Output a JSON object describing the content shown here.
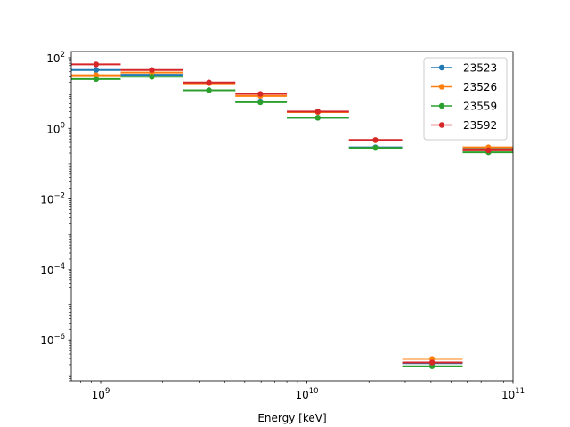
{
  "chart_data": {
    "type": "scatter",
    "title": "",
    "xlabel": "Energy [keV]",
    "ylabel": "",
    "xscale": "log",
    "yscale": "log",
    "xlim": [
      720000000.0,
      100000000000.0
    ],
    "ylim": [
      7e-08,
      150.0
    ],
    "grid": false,
    "legend_position": "top-right",
    "x_ticks": [
      {
        "base": "10",
        "exp": "9",
        "value": 1000000000.0
      },
      {
        "base": "10",
        "exp": "10",
        "value": 10000000000.0
      },
      {
        "base": "10",
        "exp": "11",
        "value": 100000000000.0
      }
    ],
    "y_ticks": [
      {
        "base": "10",
        "exp": "2",
        "value": 100.0
      },
      {
        "base": "10",
        "exp": "0",
        "value": 1
      },
      {
        "base": "10",
        "exp": "−2",
        "value": 0.01
      },
      {
        "base": "10",
        "exp": "−4",
        "value": 0.0001
      },
      {
        "base": "10",
        "exp": "−6",
        "value": 1e-06
      }
    ],
    "bins": [
      {
        "low": 720000000.0,
        "high": 1250000000.0,
        "center": 950000000.0
      },
      {
        "low": 1250000000.0,
        "high": 2500000000.0,
        "center": 1770000000.0
      },
      {
        "low": 2500000000.0,
        "high": 4500000000.0,
        "center": 3350000000.0
      },
      {
        "low": 4500000000.0,
        "high": 8000000000.0,
        "center": 5950000000.0
      },
      {
        "low": 8000000000.0,
        "high": 16000000000.0,
        "center": 11300000000.0
      },
      {
        "low": 16000000000.0,
        "high": 29000000000.0,
        "center": 21500000000.0
      },
      {
        "low": 29000000000.0,
        "high": 57000000000.0,
        "center": 40500000000.0
      },
      {
        "low": 57000000000.0,
        "high": 100000000000.0,
        "center": 76000000000.0
      }
    ],
    "series": [
      {
        "name": "23523",
        "color": "#1f77b4",
        "values": [
          45,
          33,
          12,
          5.8,
          2.0,
          0.29,
          2.2e-07,
          0.26
        ]
      },
      {
        "name": "23526",
        "color": "#ff7f0e",
        "values": [
          32,
          38,
          19,
          8.3,
          2.9,
          0.46,
          2.9e-07,
          0.29
        ]
      },
      {
        "name": "23559",
        "color": "#2ca02c",
        "values": [
          25,
          29,
          12,
          5.5,
          2.0,
          0.28,
          1.8e-07,
          0.21
        ]
      },
      {
        "name": "23592",
        "color": "#d62728",
        "values": [
          65,
          45,
          20,
          9.5,
          3.0,
          0.47,
          2.3e-07,
          0.24
        ]
      }
    ]
  }
}
